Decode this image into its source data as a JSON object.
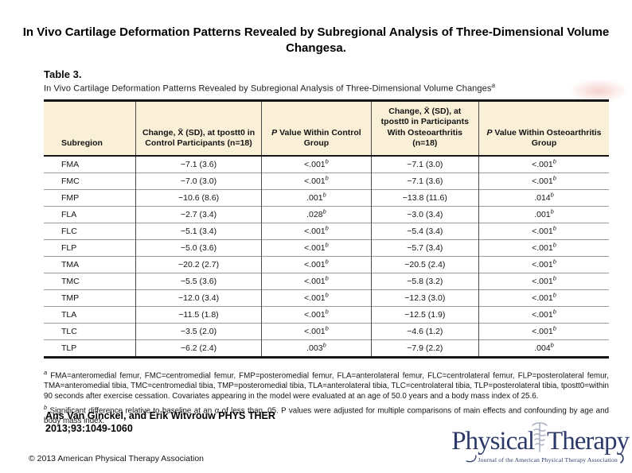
{
  "page": {
    "title": "In Vivo Cartilage Deformation Patterns Revealed by Subregional Analysis of Three-Dimensional Volume Changesa.",
    "citation_line1": "Ans Van Ginckel, and Erik Witvrouw PHYS THER",
    "citation_line2": "2013;93:1049-1060",
    "copyright": "© 2013 American Physical Therapy Association"
  },
  "figure": {
    "label": "Table 3.",
    "caption": "In Vivo Cartilage Deformation Patterns Revealed by Subregional Analysis of Three-Dimensional Volume Changes",
    "caption_marker": "a"
  },
  "chart_data": {
    "type": "table",
    "columns": [
      "Subregion",
      "Change, X̄ (SD), at tpostt0 in Control Participants (n=18)",
      "P Value Within Control Group",
      "Change, X̄ (SD), at tpostt0 in Participants With Osteoarthritis (n=18)",
      "P Value Within Osteoarthritis Group"
    ],
    "rows": [
      {
        "subregion": "FMA",
        "change_control": "−7.1 (3.6)",
        "p_control": "<.001",
        "p_control_sup": "b",
        "change_oa": "−7.1 (3.0)",
        "p_oa": "<.001",
        "p_oa_sup": "b"
      },
      {
        "subregion": "FMC",
        "change_control": "−7.0 (3.0)",
        "p_control": "<.001",
        "p_control_sup": "b",
        "change_oa": "−7.1 (3.6)",
        "p_oa": "<.001",
        "p_oa_sup": "b"
      },
      {
        "subregion": "FMP",
        "change_control": "−10.6 (8.6)",
        "p_control": ".001",
        "p_control_sup": "b",
        "change_oa": "−13.8 (11.6)",
        "p_oa": ".014",
        "p_oa_sup": "b"
      },
      {
        "subregion": "FLA",
        "change_control": "−2.7 (3.4)",
        "p_control": ".028",
        "p_control_sup": "b",
        "change_oa": "−3.0 (3.4)",
        "p_oa": ".001",
        "p_oa_sup": "b"
      },
      {
        "subregion": "FLC",
        "change_control": "−5.1 (3.4)",
        "p_control": "<.001",
        "p_control_sup": "b",
        "change_oa": "−5.4 (3.4)",
        "p_oa": "<.001",
        "p_oa_sup": "b"
      },
      {
        "subregion": "FLP",
        "change_control": "−5.0 (3.6)",
        "p_control": "<.001",
        "p_control_sup": "b",
        "change_oa": "−5.7 (3.4)",
        "p_oa": "<.001",
        "p_oa_sup": "b"
      },
      {
        "subregion": "TMA",
        "change_control": "−20.2 (2.7)",
        "p_control": "<.001",
        "p_control_sup": "b",
        "change_oa": "−20.5 (2.4)",
        "p_oa": "<.001",
        "p_oa_sup": "b"
      },
      {
        "subregion": "TMC",
        "change_control": "−5.5 (3.6)",
        "p_control": "<.001",
        "p_control_sup": "b",
        "change_oa": "−5.8 (3.2)",
        "p_oa": "<.001",
        "p_oa_sup": "b"
      },
      {
        "subregion": "TMP",
        "change_control": "−12.0 (3.4)",
        "p_control": "<.001",
        "p_control_sup": "b",
        "change_oa": "−12.3 (3.0)",
        "p_oa": "<.001",
        "p_oa_sup": "b"
      },
      {
        "subregion": "TLA",
        "change_control": "−11.5 (1.8)",
        "p_control": "<.001",
        "p_control_sup": "b",
        "change_oa": "−12.5 (1.9)",
        "p_oa": "<.001",
        "p_oa_sup": "b"
      },
      {
        "subregion": "TLC",
        "change_control": "−3.5 (2.0)",
        "p_control": "<.001",
        "p_control_sup": "b",
        "change_oa": "−4.6 (1.2)",
        "p_oa": "<.001",
        "p_oa_sup": "b"
      },
      {
        "subregion": "TLP",
        "change_control": "−6.2 (2.4)",
        "p_control": ".003",
        "p_control_sup": "b",
        "change_oa": "−7.9 (2.2)",
        "p_oa": ".004",
        "p_oa_sup": "b"
      }
    ],
    "footnotes": [
      {
        "marker": "a",
        "text": "FMA=anteromedial femur, FMC=centromedial femur, FMP=posteromedial femur, FLA=anterolateral femur, FLC=centrolateral femur, FLP=posterolateral femur, TMA=anteromedial tibia, TMC=centromedial tibia, TMP=posteromedial tibia, TLA=anterolateral tibia, TLC=centrolateral tibia, TLP=posterolateral tibia, tpostt0=within 90 seconds after exercise cessation. Covariates appearing in the model were evaluated at an age of 50.0 years and a body mass index of 25.6."
      },
      {
        "marker": "b",
        "text": "Significant difference relative to baseline at an α of less than .05. P values were adjusted for multiple comparisons of main effects and confounding by age and body mass index."
      }
    ]
  },
  "logo": {
    "word1": "Physical",
    "word2": "Therapy",
    "tagline": "Journal of the American Physical Therapy Association",
    "color_navy": "#2d3a69",
    "color_caduceus": "#a9afc2"
  },
  "colors": {
    "header_bg": "#faf0d8",
    "border_heavy": "#161616",
    "row_line": "#9a9a9a"
  }
}
